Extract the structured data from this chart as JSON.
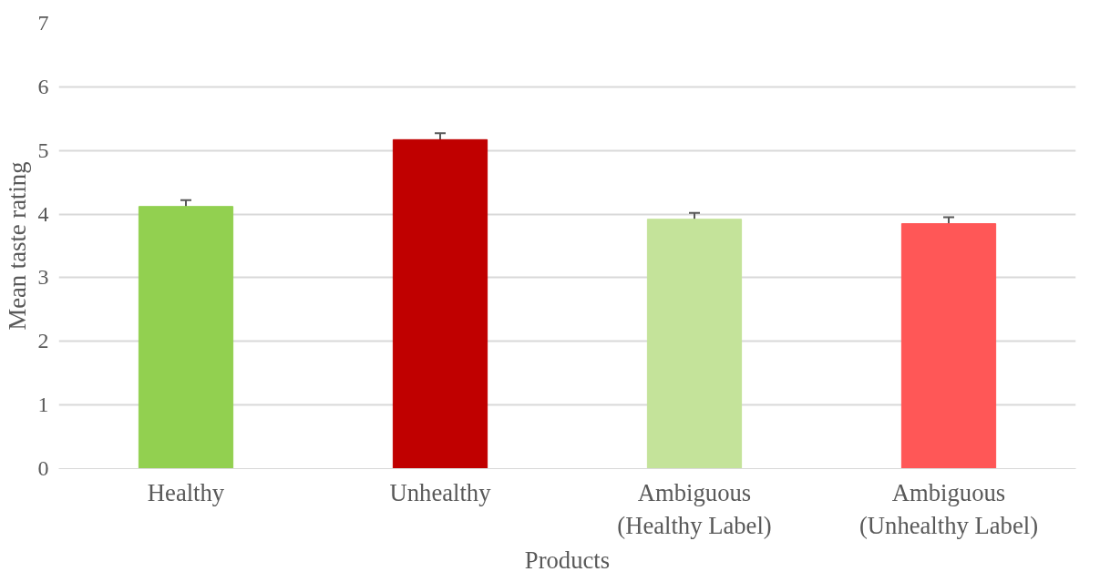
{
  "chart_data": {
    "type": "bar",
    "xlabel": "Products",
    "ylabel": "Mean taste rating",
    "categories": [
      "Healthy",
      "Unhealthy",
      "Ambiguous\n(Healthy Label)",
      "Ambiguous\n(Unhealthy Label)"
    ],
    "values": [
      4.12,
      5.17,
      3.92,
      3.85
    ],
    "colors": [
      "#92d050",
      "#c00000",
      "#c4e39a",
      "#ff5757"
    ],
    "errors": [
      0.1,
      0.1,
      0.1,
      0.1
    ],
    "ylim": [
      0,
      7
    ],
    "yticks": [
      0,
      1,
      2,
      3,
      4,
      5,
      6,
      7
    ],
    "grid": "y"
  }
}
